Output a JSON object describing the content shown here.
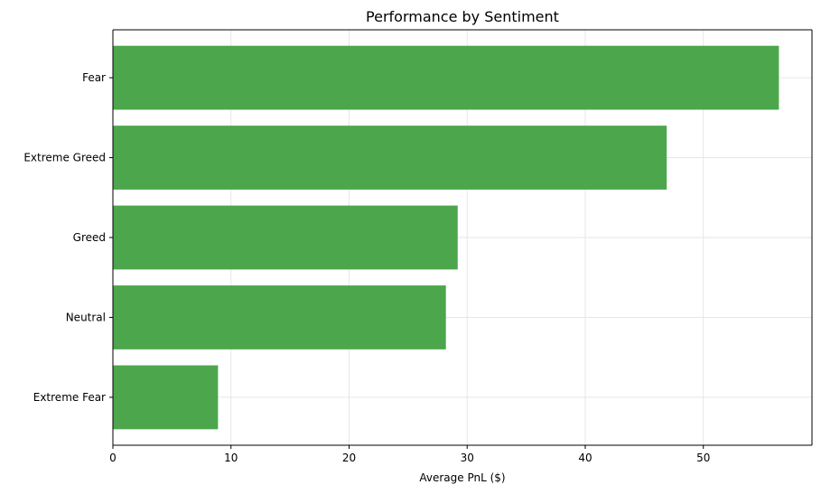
{
  "chart_data": {
    "type": "bar",
    "orientation": "horizontal",
    "title": "Performance by Sentiment",
    "xlabel": "Average PnL ($)",
    "ylabel": "",
    "categories": [
      "Extreme Fear",
      "Neutral",
      "Greed",
      "Extreme Greed",
      "Fear"
    ],
    "values": [
      8.9,
      28.2,
      29.2,
      46.9,
      56.4
    ],
    "xlim": [
      0,
      59.2
    ],
    "xticks": [
      0,
      10,
      20,
      30,
      40,
      50
    ],
    "grid": true,
    "colors": {
      "bar": "#4ca64c",
      "grid": "#e6e6e6",
      "axis": "#000000"
    }
  }
}
